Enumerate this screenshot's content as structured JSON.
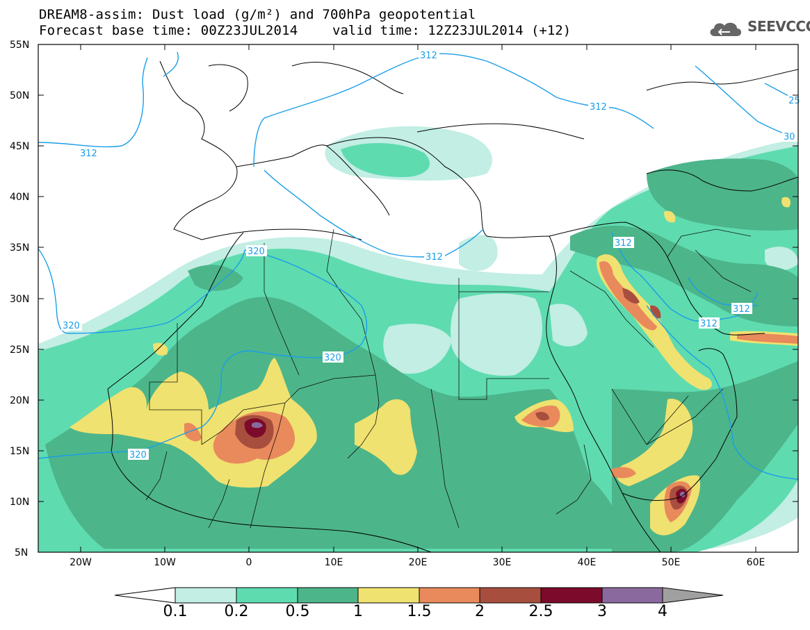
{
  "header": {
    "title_line1": "DREAM8-assim: Dust load (g/m²) and 700hPa geopotential",
    "title_line2": "Forecast base time: 00Z23JUL2014",
    "valid_time": "valid time: 12Z23JUL2014 (+12)",
    "logo": "SEEVCCC",
    "logo_icon": "cloud-logo-icon"
  },
  "map": {
    "lat_labels": [
      "55N",
      "50N",
      "45N",
      "40N",
      "35N",
      "30N",
      "25N",
      "20N",
      "15N",
      "10N",
      "5N"
    ],
    "lon_labels": [
      "20W",
      "10W",
      "0",
      "10E",
      "20E",
      "30E",
      "40E",
      "50E",
      "60E"
    ],
    "contour_labels": [
      "312",
      "312",
      "312",
      "312",
      "312",
      "312",
      "320",
      "320",
      "320",
      "320",
      "25",
      "30"
    ],
    "colors": {
      "c01": "#c2eee4",
      "c02": "#5fdbb0",
      "c05": "#4db58a",
      "c1": "#f0e270",
      "c15": "#e88a5c",
      "c2": "#a84e3e",
      "c25": "#7c0a2a",
      "c3": "#8a6a9e",
      "c4": "#a0a0a0",
      "contour": "#1a9ee8",
      "land": "#000000"
    }
  },
  "colorbar": {
    "labels": [
      "0.1",
      "0.2",
      "0.5",
      "1",
      "1.5",
      "2",
      "2.5",
      "3",
      "4"
    ]
  }
}
